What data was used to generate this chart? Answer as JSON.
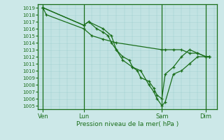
{
  "bg_color": "#cce8e8",
  "grid_color": "#99cccc",
  "line_color": "#1a6e1a",
  "marker_color": "#1a6e1a",
  "xlabel_text": "Pression niveau de la mer( hPa )",
  "x_tick_labels": [
    "Ven",
    "Lun",
    "Sam",
    "Dim"
  ],
  "x_tick_positions": [
    0,
    25,
    73,
    100
  ],
  "ylim": [
    1004.5,
    1019.5
  ],
  "yticks": [
    1005,
    1006,
    1007,
    1008,
    1009,
    1010,
    1011,
    1012,
    1013,
    1014,
    1015,
    1016,
    1017,
    1018,
    1019
  ],
  "series1_x": [
    0,
    2,
    25,
    30,
    37,
    45,
    73,
    75,
    80,
    85,
    90,
    95,
    100,
    102
  ],
  "series1_y": [
    1019,
    1018,
    1016,
    1015,
    1014.5,
    1014,
    1013,
    1013,
    1013,
    1013,
    1012.5,
    1012.5,
    1012,
    1012
  ],
  "series2_x": [
    0,
    25,
    28,
    37,
    42,
    45,
    49,
    55,
    60,
    65,
    68,
    70,
    73,
    75,
    80,
    85,
    90,
    95,
    100,
    102
  ],
  "series2_y": [
    1019,
    1016.5,
    1017,
    1016,
    1015,
    1013,
    1011.5,
    1010.5,
    1010,
    1008,
    1007,
    1006,
    1005,
    1005.5,
    1009.5,
    1010,
    1011,
    1012,
    1012,
    1012
  ],
  "series3_x": [
    0,
    25,
    28,
    33,
    37,
    40,
    42,
    45,
    49,
    53,
    55,
    58,
    60,
    65,
    68,
    70,
    73,
    75,
    80,
    85,
    90,
    95,
    100,
    102
  ],
  "series3_y": [
    1019,
    1016.5,
    1017,
    1016,
    1015.5,
    1015,
    1014,
    1013,
    1012,
    1011.5,
    1010.5,
    1010,
    1009,
    1008.5,
    1007.5,
    1006.5,
    1006,
    1009.5,
    1010.5,
    1012,
    1013,
    1012.5,
    1012,
    1012
  ]
}
